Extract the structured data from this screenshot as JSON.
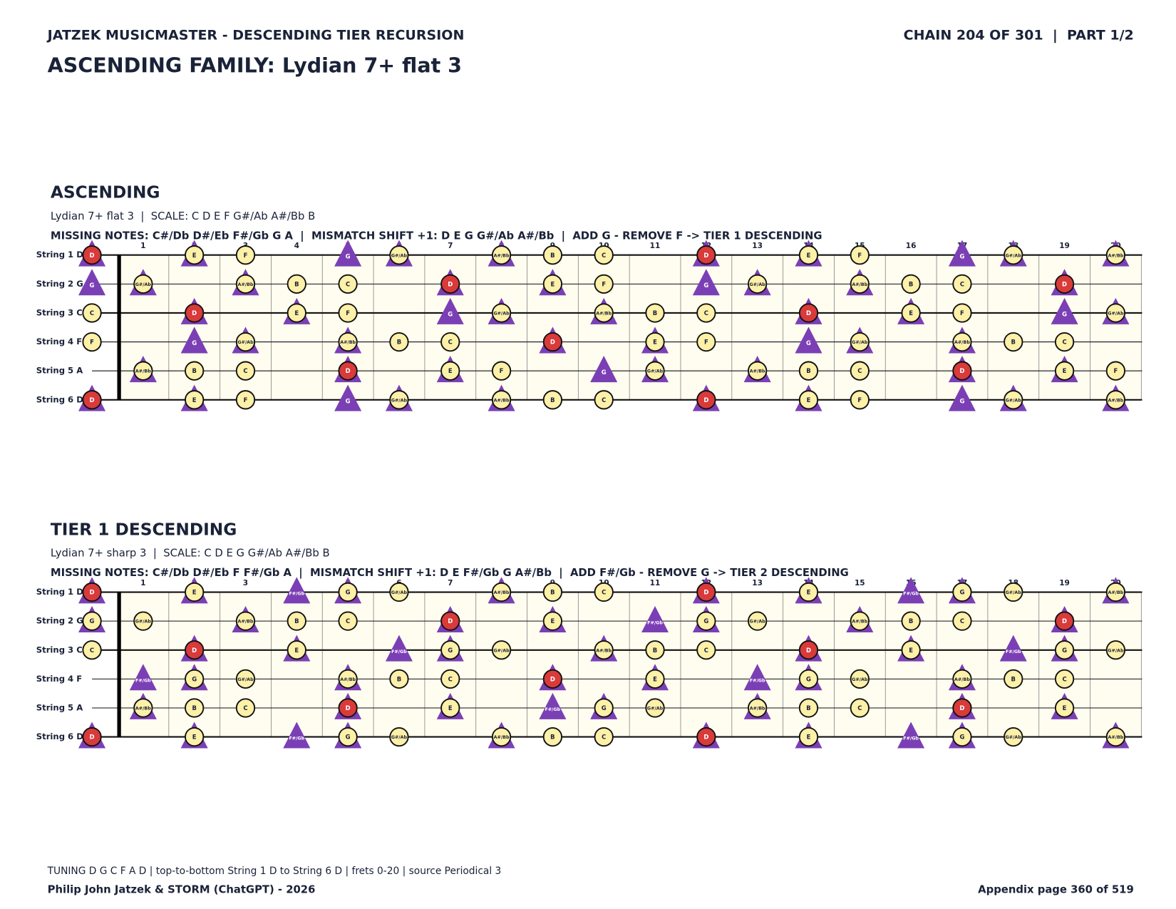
{
  "header": {
    "left": "JATZEK MUSICMASTER - DESCENDING TIER RECURSION",
    "right": "CHAIN 204 OF 301  |  PART 1/2",
    "title": "ASCENDING FAMILY: Lydian 7+ flat 3"
  },
  "fret_numbers": [
    0,
    1,
    2,
    3,
    4,
    5,
    6,
    7,
    8,
    9,
    10,
    11,
    12,
    13,
    14,
    15,
    16,
    17,
    18,
    19,
    20
  ],
  "sections": [
    {
      "title": "ASCENDING",
      "subtitle": "Lydian 7+ flat 3  |  SCALE: C D E F G#/Ab A#/Bb B",
      "missing": "MISSING NOTES: C#/Db D#/Eb F#/Gb G A  |  MISMATCH SHIFT +1: D E G G#/Ab A#/Bb  |  ADD G - REMOVE F -> TIER 1 DESCENDING",
      "strings": [
        {
          "name": "String 1 D",
          "notes": [
            "D",
            null,
            "E",
            "F",
            null,
            "G",
            "G#/Ab",
            null,
            "A#/Bb",
            "B",
            "C",
            null,
            "D",
            null,
            "E",
            "F",
            null,
            "G",
            "G#/Ab",
            null,
            "A#/Bb"
          ],
          "marks": [
            "root",
            null,
            "shift",
            "scale",
            null,
            "added",
            "shift",
            null,
            "shift",
            "scale",
            "scale",
            null,
            "root",
            null,
            "shift",
            "scale",
            null,
            "added",
            "shift",
            null,
            "shift"
          ]
        },
        {
          "name": "String 2 G",
          "notes": [
            "G",
            "G#/Ab",
            null,
            "A#/Bb",
            "B",
            "C",
            null,
            "D",
            null,
            "E",
            "F",
            null,
            "G",
            "G#/Ab",
            null,
            "A#/Bb",
            "B",
            "C",
            null,
            "D",
            null
          ],
          "marks": [
            "added",
            "shift",
            null,
            "shift",
            "scale",
            "scale",
            null,
            "root",
            null,
            "shift",
            "scale",
            null,
            "added",
            "shift",
            null,
            "shift",
            "scale",
            "scale",
            null,
            "root",
            null
          ]
        },
        {
          "name": "String 3 C",
          "notes": [
            "C",
            null,
            "D",
            null,
            "E",
            "F",
            null,
            "G",
            "G#/Ab",
            null,
            "A#/Bb",
            "B",
            "C",
            null,
            "D",
            null,
            "E",
            "F",
            null,
            "G",
            "G#/Ab"
          ],
          "marks": [
            "scale",
            null,
            "root",
            null,
            "shift",
            "scale",
            null,
            "added",
            "shift",
            null,
            "shift",
            "scale",
            "scale",
            null,
            "root",
            null,
            "shift",
            "scale",
            null,
            "added",
            "shift"
          ]
        },
        {
          "name": "String 4 F",
          "notes": [
            "F",
            null,
            "G",
            "G#/Ab",
            null,
            "A#/Bb",
            "B",
            "C",
            null,
            "D",
            null,
            "E",
            "F",
            null,
            "G",
            "G#/Ab",
            null,
            "A#/Bb",
            "B",
            "C",
            null
          ],
          "marks": [
            "scale",
            null,
            "added",
            "shift",
            null,
            "shift",
            "scale",
            "scale",
            null,
            "root",
            null,
            "shift",
            "scale",
            null,
            "added",
            "shift",
            null,
            "shift",
            "scale",
            "scale",
            null
          ]
        },
        {
          "name": "String 5 A",
          "notes": [
            null,
            "A#/Bb",
            "B",
            "C",
            null,
            "D",
            null,
            "E",
            "F",
            null,
            "G",
            "G#/Ab",
            null,
            "A#/Bb",
            "B",
            "C",
            null,
            "D",
            null,
            "E",
            "F"
          ],
          "marks": [
            null,
            "shift",
            "scale",
            "scale",
            null,
            "root",
            null,
            "shift",
            "scale",
            null,
            "added",
            "shift",
            null,
            "shift",
            "scale",
            "scale",
            null,
            "root",
            null,
            "shift",
            "scale"
          ]
        },
        {
          "name": "String 6 D",
          "notes": [
            "D",
            null,
            "E",
            "F",
            null,
            "G",
            "G#/Ab",
            null,
            "A#/Bb",
            "B",
            "C",
            null,
            "D",
            null,
            "E",
            "F",
            null,
            "G",
            "G#/Ab",
            null,
            "A#/Bb"
          ],
          "marks": [
            "root",
            null,
            "shift",
            "scale",
            null,
            "added",
            "shift",
            null,
            "shift",
            "scale",
            "scale",
            null,
            "root",
            null,
            "shift",
            "scale",
            null,
            "added",
            "shift",
            null,
            "shift"
          ]
        }
      ]
    },
    {
      "title": "TIER 1 DESCENDING",
      "subtitle": "Lydian 7+ sharp 3  |  SCALE: C D E G G#/Ab A#/Bb B",
      "missing": "MISSING NOTES: C#/Db D#/Eb F F#/Gb A  |  MISMATCH SHIFT +1: D E F#/Gb G A#/Bb  |  ADD F#/Gb - REMOVE G -> TIER 2 DESCENDING",
      "strings": [
        {
          "name": "String 1 D",
          "notes": [
            "D",
            null,
            "E",
            null,
            "F#/Gb",
            "G",
            "G#/Ab",
            null,
            "A#/Bb",
            "B",
            "C",
            null,
            "D",
            null,
            "E",
            null,
            "F#/Gb",
            "G",
            "G#/Ab",
            null,
            "A#/Bb"
          ],
          "marks": [
            "root",
            null,
            "shift",
            null,
            "added",
            "shift",
            "scale",
            null,
            "shift",
            "scale",
            "scale",
            null,
            "root",
            null,
            "shift",
            null,
            "added",
            "shift",
            "scale",
            null,
            "shift"
          ]
        },
        {
          "name": "String 2 G",
          "notes": [
            "G",
            "G#/Ab",
            null,
            "A#/Bb",
            "B",
            "C",
            null,
            "D",
            null,
            "E",
            null,
            "F#/Gb",
            "G",
            "G#/Ab",
            null,
            "A#/Bb",
            "B",
            "C",
            null,
            "D",
            null
          ],
          "marks": [
            "shift",
            "scale",
            null,
            "shift",
            "scale",
            "scale",
            null,
            "root",
            null,
            "shift",
            null,
            "added",
            "shift",
            "scale",
            null,
            "shift",
            "scale",
            "scale",
            null,
            "root",
            null
          ]
        },
        {
          "name": "String 3 C",
          "notes": [
            "C",
            null,
            "D",
            null,
            "E",
            null,
            "F#/Gb",
            "G",
            "G#/Ab",
            null,
            "A#/Bb",
            "B",
            "C",
            null,
            "D",
            null,
            "E",
            null,
            "F#/Gb",
            "G",
            "G#/Ab"
          ],
          "marks": [
            "scale",
            null,
            "root",
            null,
            "shift",
            null,
            "added",
            "shift",
            "scale",
            null,
            "shift",
            "scale",
            "scale",
            null,
            "root",
            null,
            "shift",
            null,
            "added",
            "shift",
            "scale"
          ]
        },
        {
          "name": "String 4 F",
          "notes": [
            null,
            "F#/Gb",
            "G",
            "G#/Ab",
            null,
            "A#/Bb",
            "B",
            "C",
            null,
            "D",
            null,
            "E",
            null,
            "F#/Gb",
            "G",
            "G#/Ab",
            null,
            "A#/Bb",
            "B",
            "C",
            null
          ],
          "marks": [
            null,
            "added",
            "shift",
            "scale",
            null,
            "shift",
            "scale",
            "scale",
            null,
            "root",
            null,
            "shift",
            null,
            "added",
            "shift",
            "scale",
            null,
            "shift",
            "scale",
            "scale",
            null
          ]
        },
        {
          "name": "String 5 A",
          "notes": [
            null,
            "A#/Bb",
            "B",
            "C",
            null,
            "D",
            null,
            "E",
            null,
            "F#/Gb",
            "G",
            "G#/Ab",
            null,
            "A#/Bb",
            "B",
            "C",
            null,
            "D",
            null,
            "E",
            null
          ],
          "marks": [
            null,
            "shift",
            "scale",
            "scale",
            null,
            "root",
            null,
            "shift",
            null,
            "added",
            "shift",
            "scale",
            null,
            "shift",
            "scale",
            "scale",
            null,
            "root",
            null,
            "shift",
            null
          ]
        },
        {
          "name": "String 6 D",
          "notes": [
            "D",
            null,
            "E",
            null,
            "F#/Gb",
            "G",
            "G#/Ab",
            null,
            "A#/Bb",
            "B",
            "C",
            null,
            "D",
            null,
            "E",
            null,
            "F#/Gb",
            "G",
            "G#/Ab",
            null,
            "A#/Bb"
          ],
          "marks": [
            "root",
            null,
            "shift",
            null,
            "added",
            "shift",
            "scale",
            null,
            "shift",
            "scale",
            "scale",
            null,
            "root",
            null,
            "shift",
            null,
            "added",
            "shift",
            "scale",
            null,
            "shift"
          ]
        }
      ]
    }
  ],
  "footer": {
    "note": "TUNING D G C F A D | top-to-bottom String 1 D to String 6 D | frets 0-20 | source Periodical 3",
    "left": "Philip John Jatzek & STORM (ChatGPT) - 2026",
    "right": "Appendix page 360 of 519"
  }
}
